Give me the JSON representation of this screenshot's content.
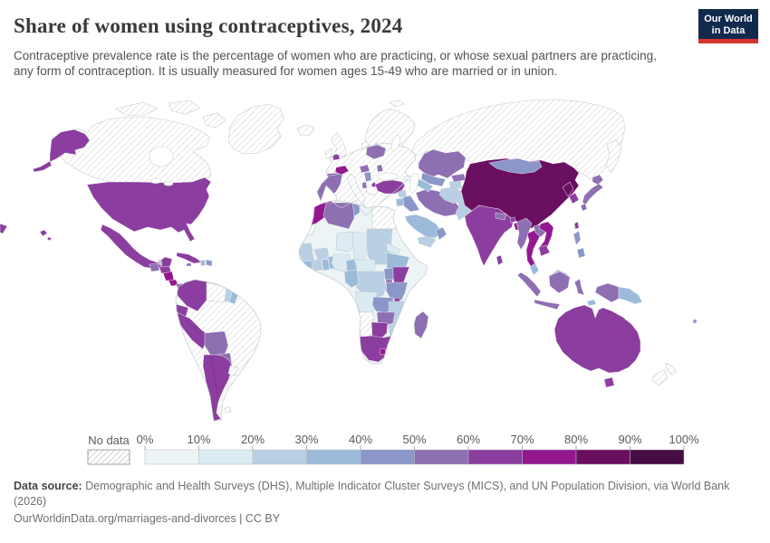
{
  "header": {
    "title": "Share of women using contraceptives, 2024",
    "subtitle": "Contraceptive prevalence rate is the percentage of women who are practicing, or whose sexual partners are practicing, any form of contraception. It is usually measured for women ages 15-49 who are married or in union.",
    "logo": {
      "line1": "Our World",
      "line2": "in Data"
    }
  },
  "legend": {
    "no_data_label": "No data",
    "tick_labels": [
      "0%",
      "10%",
      "20%",
      "30%",
      "40%",
      "50%",
      "60%",
      "70%",
      "80%",
      "90%",
      "100%"
    ],
    "bin_colors": [
      "#ecf4f6",
      "#dcebf2",
      "#b9cfe3",
      "#9cbbd9",
      "#8b97c9",
      "#8d6fb2",
      "#8b3e9f",
      "#93188f",
      "#6a0f60",
      "#460d42"
    ]
  },
  "footer": {
    "source_label": "Data source:",
    "source_text": "Demographic and Health Surveys (DHS), Multiple Indicator Cluster Surveys (MICS), and UN Population Division, via World Bank (2026)",
    "link_line": "OurWorldinData.org/marriages-and-divorces | CC BY"
  },
  "chart_data": {
    "type": "choropleth_map",
    "title": "Share of women using contraceptives, 2024",
    "unit": "%",
    "bins": {
      "min": 0,
      "max": 100,
      "step": 10
    },
    "no_data_countries": [
      "Canada",
      "Greenland",
      "Russia",
      "Brazil",
      "Venezuela",
      "Uruguay",
      "Iceland",
      "United Kingdom",
      "Ireland",
      "Norway",
      "Sweden",
      "Finland",
      "Denmark",
      "France",
      "Germany",
      "Poland",
      "Italy",
      "Greece",
      "Ukraine",
      "Romania",
      "Austria",
      "Czechia",
      "Egypt",
      "Western Sahara",
      "Namibia",
      "New Zealand",
      "Georgia"
    ],
    "values": {
      "United States": 65,
      "Mexico": 65,
      "Guatemala": 55,
      "Belize": 25,
      "Honduras": 65,
      "Nicaragua": 75,
      "Costa Rica": 75,
      "Panama": 55,
      "Cuba": 65,
      "Jamaica": 55,
      "Haiti": 35,
      "Dominican Republic": 45,
      "Colombia": 65,
      "Ecuador": 65,
      "Peru": 65,
      "Bolivia": 55,
      "Paraguay": 55,
      "Argentina": 65,
      "Chile": 65,
      "Guyana": 25,
      "Suriname": 35,
      "Spain": 55,
      "Portugal": 55,
      "Belgium": 65,
      "Switzerland": 75,
      "Belarus": 55,
      "Hungary": 55,
      "Moldova": 55,
      "Serbia": 45,
      "Albania": 55,
      "Azerbaijan": 55,
      "Turkey": 65,
      "Morocco": 75,
      "Algeria": 55,
      "Tunisia": 45,
      "Libya": 5,
      "Mauritania": 5,
      "Mali": 5,
      "Niger": 15,
      "Chad": 15,
      "Sudan": 25,
      "Senegal": 25,
      "Guinea": 25,
      "Sierra Leone": 35,
      "Côte d'Ivoire": 25,
      "Ghana": 35,
      "Burkina Faso": 25,
      "Benin": 35,
      "Nigeria": 15,
      "Cameroon": 35,
      "Central African Republic": 15,
      "South Sudan": 5,
      "Ethiopia": 35,
      "Eritrea": 15,
      "Somalia": 5,
      "Kenya": 65,
      "Uganda": 45,
      "Rwanda": 55,
      "DR Congo": 25,
      "Congo": 35,
      "Tanzania": 45,
      "Angola": 15,
      "Zambia": 45,
      "Malawi": 65,
      "Mozambique": 25,
      "Zimbabwe": 55,
      "Botswana": 65,
      "South Africa": 65,
      "Lesotho": 75,
      "Madagascar": 55,
      "Syria": 25,
      "Iraq": 45,
      "Iran": 55,
      "Saudi Arabia": 35,
      "Yemen": 25,
      "Oman": 45,
      "Jordan": 35,
      "Kazakhstan": 55,
      "Uzbekistan": 45,
      "Turkmenistan": 35,
      "Kyrgyzstan": 55,
      "Tajikistan": 25,
      "Afghanistan": 25,
      "Pakistan": 25,
      "India": 65,
      "Nepal": 55,
      "Bhutan": 65,
      "Bangladesh": 75,
      "Sri Lanka": 65,
      "China": 85,
      "Mongolia": 45,
      "North Korea": 85,
      "South Korea": 65,
      "Japan": 55,
      "Taiwan": 65,
      "Myanmar": 55,
      "Thailand": 75,
      "Laos": 55,
      "Vietnam": 75,
      "Cambodia": 65,
      "Malaysia": 35,
      "Indonesia": 55,
      "Philippines": 45,
      "Papua New Guinea": 35,
      "Timor-Leste": 35,
      "Australia": 65,
      "Fiji": 45
    }
  }
}
